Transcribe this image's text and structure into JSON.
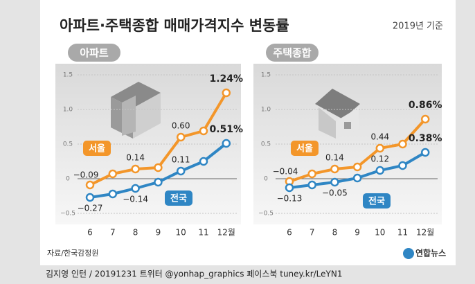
{
  "title": "아파트·주택종합 매매가격지수 변동률",
  "subtitle": "2019년 기준",
  "source": "자료/한국감정원",
  "logo": "연합뉴스",
  "credit": "김지영 인턴 / 20191231 트위터 @yonhap_graphics 페이스북 tuney.kr/LeYN1",
  "chart_data": [
    {
      "type": "line",
      "title": "아파트",
      "categories": [
        "6",
        "7",
        "8",
        "9",
        "10",
        "11",
        "12월"
      ],
      "series": [
        {
          "name": "서울",
          "color": "#f3962a",
          "values": [
            -0.09,
            0.07,
            0.14,
            0.16,
            0.6,
            0.69,
            1.24
          ],
          "value_labels": [
            "−0.09",
            null,
            "0.14",
            null,
            "0.60",
            null,
            "1.24%"
          ]
        },
        {
          "name": "전국",
          "color": "#2f86c4",
          "values": [
            -0.27,
            -0.22,
            -0.14,
            -0.05,
            0.11,
            0.25,
            0.51
          ],
          "value_labels": [
            "−0.27",
            null,
            "−0.14",
            null,
            "0.11",
            null,
            "0.51%"
          ]
        }
      ],
      "ylim": [
        -0.62,
        1.58
      ],
      "yticks": [
        1.5,
        {
          "value": 1.0,
          "label": "1.0"
        },
        0.5,
        0,
        {
          "value": -0.5,
          "label": "−0.5"
        }
      ],
      "grid": true
    },
    {
      "type": "line",
      "title": "주택종합",
      "categories": [
        "6",
        "7",
        "8",
        "9",
        "10",
        "11",
        "12월"
      ],
      "series": [
        {
          "name": "서울",
          "color": "#f3962a",
          "values": [
            -0.04,
            0.07,
            0.14,
            0.17,
            0.44,
            0.5,
            0.86
          ],
          "value_labels": [
            "−0.04",
            null,
            "0.14",
            null,
            "0.44",
            null,
            "0.86%"
          ]
        },
        {
          "name": "전국",
          "color": "#2f86c4",
          "values": [
            -0.13,
            -0.09,
            -0.05,
            0.01,
            0.12,
            0.19,
            0.38
          ],
          "value_labels": [
            "−0.13",
            null,
            "−0.05",
            null,
            "0.12",
            null,
            "0.38%"
          ]
        }
      ],
      "ylim": [
        -0.62,
        1.58
      ],
      "yticks": [
        1.5,
        {
          "value": 1.0,
          "label": "1.0"
        },
        0.5,
        0,
        {
          "value": -0.5,
          "label": "−0.5"
        }
      ],
      "grid": true
    }
  ]
}
